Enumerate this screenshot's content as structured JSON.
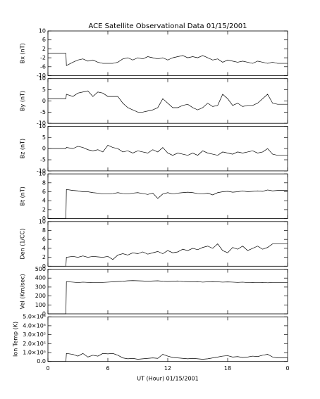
{
  "chart_data": {
    "type": "line",
    "title": "ACE Satellite Observational Data   01/15/2001",
    "xlabel": "UT (Hour)  01/15/2001",
    "xlim": [
      0,
      24
    ],
    "xticks": [
      0,
      6,
      12,
      18,
      {
        "value": 24,
        "label": "0"
      }
    ],
    "x": [
      0,
      1.8,
      1.85,
      2.5,
      3,
      3.5,
      4,
      4.5,
      5,
      5.5,
      6,
      6.5,
      7,
      7.5,
      8,
      8.5,
      9,
      9.5,
      10,
      10.5,
      11,
      11.5,
      12,
      12.5,
      13,
      13.5,
      14,
      14.5,
      15,
      15.5,
      16,
      16.5,
      17,
      17.5,
      18,
      18.5,
      19,
      19.5,
      20,
      20.5,
      21,
      21.5,
      22,
      22.5,
      23,
      24
    ],
    "panels": [
      {
        "ylabel": "Bx (nT)",
        "ylim": [
          -10,
          10
        ],
        "yticks": [
          -10,
          -6,
          -2,
          2,
          6,
          10
        ],
        "color": "#000000",
        "values": [
          0,
          0,
          -5.5,
          -4,
          -3,
          -2.5,
          -3.5,
          -3,
          -4,
          -4.5,
          -4.5,
          -4.5,
          -4,
          -2.5,
          -2,
          -3,
          -2,
          -2.5,
          -1.5,
          -2,
          -2.5,
          -2,
          -3,
          -2,
          -1.5,
          -1,
          -2,
          -1.5,
          -2,
          -1,
          -2,
          -3,
          -2.5,
          -4,
          -3,
          -3.5,
          -4,
          -3.5,
          -4,
          -4.5,
          -3.5,
          -4,
          -4.5,
          -4,
          -4.5,
          -4.5
        ]
      },
      {
        "ylabel": "By (nT)",
        "ylim": [
          -10,
          10
        ],
        "yticks": [
          -10,
          -5,
          0,
          5,
          10
        ],
        "color": "#000000",
        "values": [
          1,
          1,
          3,
          2,
          3.5,
          4,
          4.5,
          2,
          4,
          3.5,
          2,
          2,
          2,
          -1,
          -3,
          -4,
          -5,
          -5,
          -4.5,
          -4,
          -3,
          1,
          -1,
          -3,
          -3,
          -2,
          -1.5,
          -3,
          -4,
          -3,
          -1,
          -2.5,
          -2,
          3,
          1,
          -2,
          -1,
          -2.5,
          -2,
          -2,
          -1,
          1,
          3,
          -1,
          -1.5,
          -1.5
        ]
      },
      {
        "ylabel": "Bz (nT)",
        "ylim": [
          -10,
          10
        ],
        "yticks": [
          -10,
          -5,
          0,
          5,
          10
        ],
        "color": "#000000",
        "values": [
          0,
          0,
          0.5,
          0,
          1,
          0.5,
          -0.5,
          -1,
          -0.5,
          -1.5,
          1.5,
          0.5,
          0,
          -1.5,
          -1,
          -2,
          -1,
          -1.5,
          -2,
          -0.5,
          -1.5,
          0.5,
          -2,
          -3,
          -2,
          -2.5,
          -3,
          -2,
          -3,
          -1,
          -2,
          -2.5,
          -3,
          -1.5,
          -2,
          -2.5,
          -1.5,
          -2,
          -1.5,
          -1,
          -2,
          -1.5,
          0,
          -2.5,
          -3,
          -3
        ]
      },
      {
        "ylabel": "Bt (nT)",
        "ylim": [
          0,
          10
        ],
        "yticks": [
          0,
          2,
          4,
          6,
          8,
          10
        ],
        "color": "#000000",
        "values": [
          0,
          0,
          6.5,
          6.3,
          6.2,
          6,
          6,
          5.8,
          5.7,
          5.5,
          5.5,
          5.6,
          5.8,
          5.6,
          5.5,
          5.7,
          5.8,
          5.6,
          5.4,
          5.7,
          4.5,
          5.5,
          5.8,
          5.5,
          5.7,
          5.8,
          5.9,
          5.8,
          5.6,
          5.5,
          5.7,
          5.3,
          5.8,
          6,
          6.1,
          5.9,
          6,
          6.2,
          6,
          6.1,
          6.2,
          6.1,
          6.4,
          6.2,
          6.3,
          6.3
        ]
      },
      {
        "ylabel": "Den (1/CC)",
        "ylim": [
          0,
          10
        ],
        "yticks": [
          0,
          2,
          4,
          6,
          8,
          10
        ],
        "color": "#000000",
        "values": [
          0,
          0,
          2,
          2.2,
          2,
          2.3,
          2,
          2.2,
          2.1,
          2,
          2.2,
          1.5,
          2.5,
          2.8,
          2.5,
          3,
          2.8,
          3.2,
          2.7,
          3,
          3.3,
          2.8,
          3.5,
          3,
          3.2,
          3.8,
          3.5,
          4,
          3.7,
          4.2,
          4.5,
          4,
          5,
          3.5,
          3,
          4.2,
          3.8,
          4.5,
          3.5,
          4,
          4.5,
          3.8,
          4.2,
          5,
          5,
          5
        ]
      },
      {
        "ylabel": "Vel (Km/sec)",
        "ylim": [
          0,
          500
        ],
        "yticks": [
          0,
          100,
          200,
          300,
          400,
          500
        ],
        "color": "#000000",
        "values": [
          0,
          0,
          360,
          355,
          350,
          355,
          352,
          350,
          350,
          352,
          355,
          358,
          362,
          365,
          370,
          372,
          370,
          368,
          365,
          368,
          370,
          365,
          362,
          365,
          368,
          362,
          360,
          358,
          360,
          355,
          358,
          360,
          358,
          355,
          357,
          355,
          352,
          355,
          350,
          352,
          350,
          352,
          348,
          350,
          350,
          350
        ]
      },
      {
        "ylabel": "Ion Temp (K)",
        "ylim": [
          0,
          500000
        ],
        "yticks": [
          {
            "value": 0,
            "label": "0.0"
          },
          {
            "value": 100000,
            "label": "1.0×10⁵"
          },
          {
            "value": 200000,
            "label": "2.0×10⁵"
          },
          {
            "value": 300000,
            "label": "3.0×10⁵"
          },
          {
            "value": 400000,
            "label": "4.0×10⁵"
          },
          {
            "value": 500000,
            "label": "5.0×10⁵"
          }
        ],
        "color": "#000000",
        "values": [
          0,
          0,
          90000,
          80000,
          60000,
          90000,
          50000,
          70000,
          60000,
          90000,
          85000,
          90000,
          70000,
          40000,
          30000,
          35000,
          25000,
          30000,
          35000,
          40000,
          35000,
          80000,
          60000,
          45000,
          40000,
          35000,
          30000,
          35000,
          30000,
          25000,
          30000,
          40000,
          50000,
          60000,
          65000,
          50000,
          55000,
          45000,
          50000,
          60000,
          55000,
          70000,
          80000,
          50000,
          40000,
          40000
        ]
      }
    ]
  }
}
